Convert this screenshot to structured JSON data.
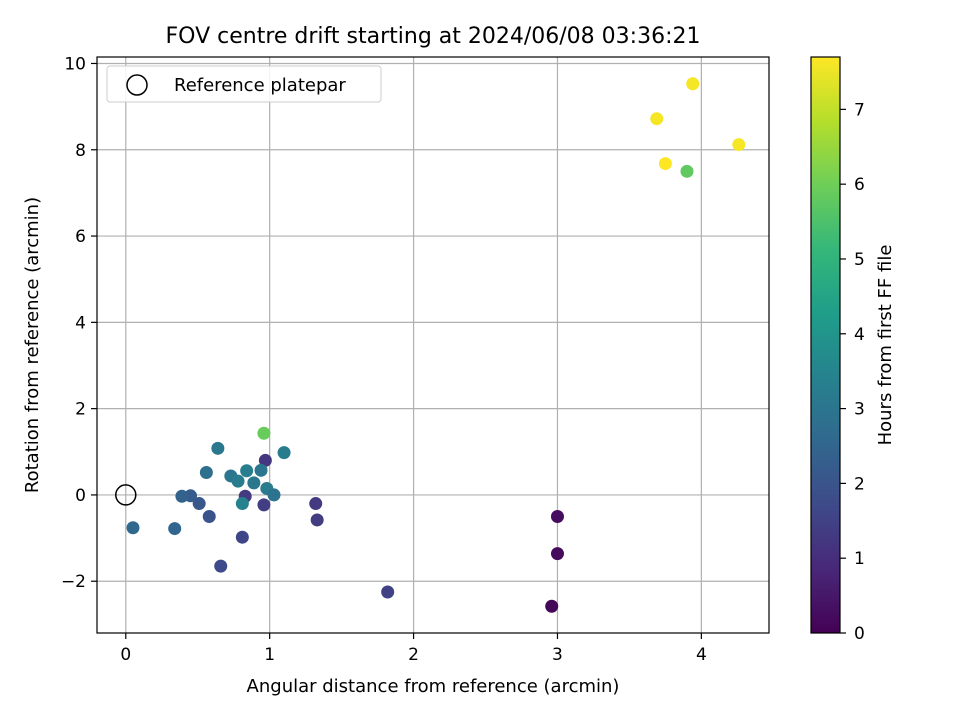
{
  "chart_data": {
    "type": "scatter",
    "title": "FOV centre drift starting at 2024/06/08 03:36:21",
    "xlabel": "Angular distance from reference (arcmin)",
    "ylabel": "Rotation from reference (arcmin)",
    "xlim": [
      -0.2,
      4.47
    ],
    "ylim": [
      -3.2,
      10.15
    ],
    "xticks": [
      0,
      1,
      2,
      3,
      4
    ],
    "yticks": [
      -2,
      0,
      2,
      4,
      6,
      8,
      10
    ],
    "xtick_labels": [
      "0",
      "1",
      "2",
      "3",
      "4"
    ],
    "ytick_labels": [
      "−2",
      "0",
      "2",
      "4",
      "6",
      "8",
      "10"
    ],
    "grid": true,
    "colormap": "viridis",
    "colorbar": {
      "label": "Hours from first FF file",
      "range": [
        0,
        7.7
      ],
      "ticks": [
        0,
        1,
        2,
        3,
        4,
        5,
        6,
        7
      ],
      "tick_labels": [
        "0",
        "1",
        "2",
        "3",
        "4",
        "5",
        "6",
        "7"
      ]
    },
    "legend": {
      "placement": "upper-left",
      "entries": [
        "Reference platepar"
      ]
    },
    "reference_point": {
      "x": 0,
      "y": 0
    },
    "points": [
      {
        "x": 2.96,
        "y": -2.58,
        "c": 0.1
      },
      {
        "x": 3.0,
        "y": -1.36,
        "c": 0.2
      },
      {
        "x": 3.0,
        "y": -0.5,
        "c": 0.25
      },
      {
        "x": 1.82,
        "y": -2.25,
        "c": 1.5
      },
      {
        "x": 1.32,
        "y": -0.2,
        "c": 1.3
      },
      {
        "x": 1.33,
        "y": -0.58,
        "c": 1.35
      },
      {
        "x": 0.97,
        "y": 0.8,
        "c": 1.2
      },
      {
        "x": 0.96,
        "y": -0.23,
        "c": 1.4
      },
      {
        "x": 0.83,
        "y": -0.03,
        "c": 1.3
      },
      {
        "x": 0.81,
        "y": -0.98,
        "c": 1.6
      },
      {
        "x": 0.66,
        "y": -1.65,
        "c": 1.7
      },
      {
        "x": 0.58,
        "y": -0.5,
        "c": 2.0
      },
      {
        "x": 0.51,
        "y": -0.2,
        "c": 2.1
      },
      {
        "x": 0.45,
        "y": -0.02,
        "c": 2.2
      },
      {
        "x": 0.39,
        "y": -0.03,
        "c": 2.4
      },
      {
        "x": 0.34,
        "y": -0.78,
        "c": 2.5
      },
      {
        "x": 0.05,
        "y": -0.76,
        "c": 2.6
      },
      {
        "x": 0.56,
        "y": 0.52,
        "c": 2.8
      },
      {
        "x": 0.64,
        "y": 1.08,
        "c": 3.1
      },
      {
        "x": 0.73,
        "y": 0.44,
        "c": 3.0
      },
      {
        "x": 0.78,
        "y": 0.32,
        "c": 3.2
      },
      {
        "x": 0.84,
        "y": 0.56,
        "c": 3.3
      },
      {
        "x": 0.81,
        "y": -0.2,
        "c": 3.4
      },
      {
        "x": 0.89,
        "y": 0.28,
        "c": 3.1
      },
      {
        "x": 0.94,
        "y": 0.57,
        "c": 3.0
      },
      {
        "x": 0.98,
        "y": 0.15,
        "c": 3.2
      },
      {
        "x": 1.03,
        "y": 0.0,
        "c": 2.9
      },
      {
        "x": 1.1,
        "y": 0.98,
        "c": 3.2
      },
      {
        "x": 0.96,
        "y": 1.43,
        "c": 5.9
      },
      {
        "x": 3.9,
        "y": 7.5,
        "c": 5.8
      },
      {
        "x": 3.69,
        "y": 8.72,
        "c": 7.6
      },
      {
        "x": 3.75,
        "y": 7.68,
        "c": 7.7
      },
      {
        "x": 3.94,
        "y": 9.53,
        "c": 7.6
      },
      {
        "x": 4.26,
        "y": 8.12,
        "c": 7.6
      }
    ]
  }
}
